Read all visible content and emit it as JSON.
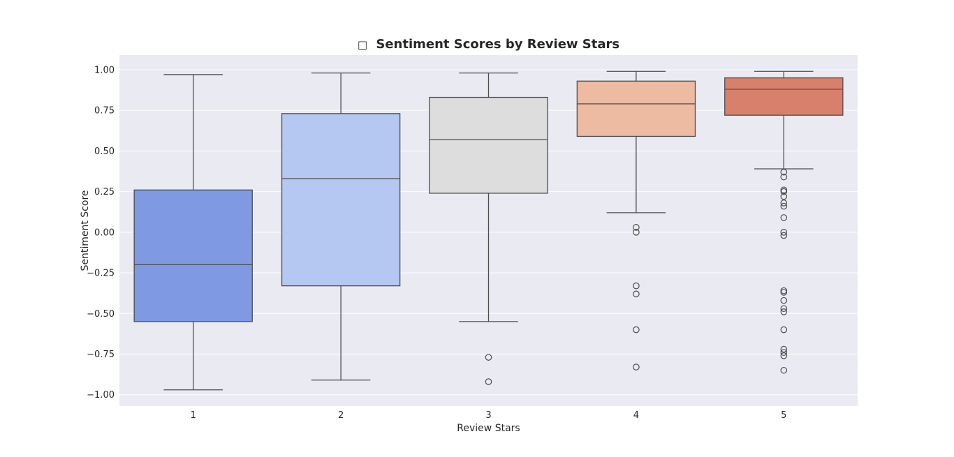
{
  "chart_data": {
    "type": "box",
    "title": "Sentiment Scores by Review Stars",
    "title_icon_glyph": "□",
    "xlabel": "Review Stars",
    "ylabel": "Sentiment Score",
    "ylim": [
      -1.07,
      1.09
    ],
    "yticks": [
      1.0,
      0.75,
      0.5,
      0.25,
      0.0,
      -0.25,
      -0.5,
      -0.75,
      -1.0
    ],
    "ytick_labels": [
      "1.00",
      "0.75",
      "0.50",
      "0.25",
      "0.00",
      "−0.25",
      "−0.50",
      "−0.75",
      "−1.00"
    ],
    "grid": true,
    "background": "#eaeaf2",
    "categories": [
      "1",
      "2",
      "3",
      "4",
      "5"
    ],
    "boxes": [
      {
        "category": "1",
        "whisker_low": -0.97,
        "q1": -0.55,
        "median": -0.2,
        "q3": 0.26,
        "whisker_high": 0.97,
        "outliers": [],
        "color": "#7f99e3"
      },
      {
        "category": "2",
        "whisker_low": -0.91,
        "q1": -0.33,
        "median": 0.33,
        "q3": 0.73,
        "whisker_high": 0.98,
        "outliers": [],
        "color": "#b5c8f2"
      },
      {
        "category": "3",
        "whisker_low": -0.55,
        "q1": 0.24,
        "median": 0.57,
        "q3": 0.83,
        "whisker_high": 0.98,
        "outliers": [
          -0.77,
          -0.92
        ],
        "color": "#dddddd"
      },
      {
        "category": "4",
        "whisker_low": 0.12,
        "q1": 0.59,
        "median": 0.79,
        "q3": 0.93,
        "whisker_high": 0.99,
        "outliers": [
          0.03,
          0.0,
          -0.33,
          -0.38,
          -0.6,
          -0.83
        ],
        "color": "#ecbba2"
      },
      {
        "category": "5",
        "whisker_low": 0.39,
        "q1": 0.72,
        "median": 0.88,
        "q3": 0.95,
        "whisker_high": 0.99,
        "outliers": [
          0.37,
          0.34,
          0.26,
          0.25,
          0.22,
          0.18,
          0.16,
          0.09,
          0.0,
          -0.02,
          -0.36,
          -0.37,
          -0.42,
          -0.47,
          -0.49,
          -0.6,
          -0.72,
          -0.74,
          -0.76,
          -0.85
        ],
        "color": "#d8806b"
      }
    ]
  }
}
